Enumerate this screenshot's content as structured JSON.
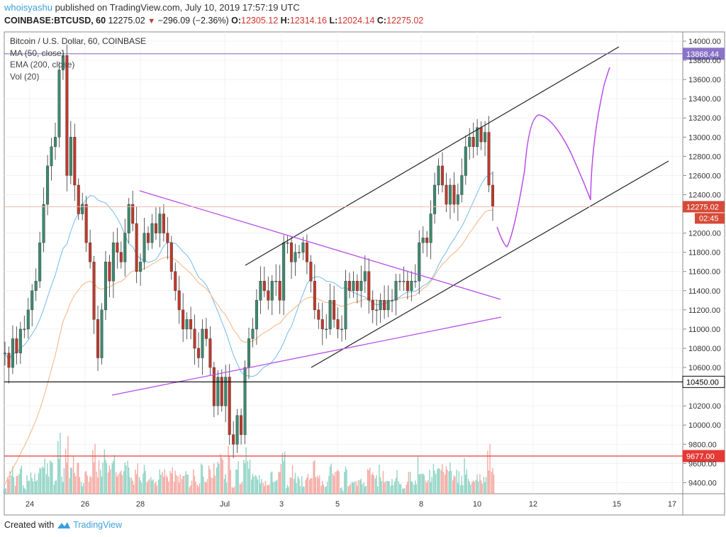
{
  "header": {
    "user": "whoisyashu",
    "published": "published on TradingView.com, July 10, 2019 17:57:19 UTC",
    "symbol": "COINBASE:BTCUSD, 60",
    "last": "12275.02",
    "change": "−296.09 (−2.36%)",
    "o_label": "O:",
    "o": "12305.12",
    "h_label": "H:",
    "h": "12314.16",
    "l_label": "L:",
    "l": "12024.14",
    "c_label": "C:",
    "c": "12275.02"
  },
  "legend": {
    "title": "Bitcoin / U.S. Dollar, 60, COINBASE",
    "ma": "MA (50, close)",
    "ema": "EMA (200, close)",
    "vol": "Vol (20)"
  },
  "footer": {
    "created": "Created with",
    "brand": "TradingView"
  },
  "colors": {
    "up": "#3c8a6e",
    "down": "#c0392b",
    "ma": "#7ec0ee",
    "ema": "#f7b98b",
    "resist": "#8a74c8",
    "support_red": "#e53935",
    "drawing": "#b84dea",
    "last": "#d64a38"
  },
  "chart_data": {
    "type": "candlestick",
    "ylim": [
      9300,
      14100
    ],
    "y_ticks": [
      "14000.00",
      "13800.00",
      "13600.00",
      "13400.00",
      "13200.00",
      "13000.00",
      "12800.00",
      "12600.00",
      "12400.00",
      "12000.00",
      "11800.00",
      "11600.00",
      "11400.00",
      "11200.00",
      "11000.00",
      "10800.00",
      "10600.00",
      "10200.00",
      "10000.00",
      "9800.00",
      "9600.00",
      "9400.00"
    ],
    "x_ticks": [
      "24",
      "26",
      "28",
      "Jul",
      "3",
      "5",
      "8",
      "10",
      "12",
      "15",
      "17"
    ],
    "closes": [
      10750,
      10600,
      10900,
      10750,
      11000,
      11000,
      11200,
      11400,
      11500,
      11900,
      12300,
      12700,
      12900,
      13000,
      13700,
      13850,
      12600,
      13000,
      12500,
      12200,
      12300,
      11900,
      11700,
      11100,
      10700,
      11200,
      11700,
      11500,
      11900,
      11800,
      11700,
      12000,
      12300,
      12100,
      11600,
      11700,
      12000,
      11900,
      12100,
      12000,
      12200,
      12000,
      11900,
      11600,
      11400,
      11200,
      11000,
      11100,
      11000,
      10800,
      10700,
      11000,
      10900,
      10600,
      10200,
      10500,
      10200,
      10500,
      9900,
      9800,
      10100,
      9900,
      10600,
      10900,
      11000,
      11300,
      11500,
      11400,
      11300,
      11500,
      11500,
      11300,
      11900,
      11900,
      11700,
      11800,
      11800,
      11900,
      11700,
      11500,
      11200,
      11100,
      11000,
      11000,
      11300,
      11100,
      11000,
      11000,
      11500,
      11400,
      11500,
      11400,
      11500,
      11600,
      11300,
      11200,
      11200,
      11300,
      11200,
      11300,
      11300,
      11500,
      11500,
      11500,
      11400,
      11500,
      11500,
      11900,
      11950,
      11900,
      12200,
      12500,
      12700,
      12500,
      12300,
      12500,
      12300,
      12400,
      12600,
      12900,
      13000,
      12900,
      13100,
      12950,
      13050,
      12500,
      12275.02
    ],
    "horizontal_levels": [
      {
        "label": "13868.44",
        "price": 13868.44,
        "color": "#8a74c8"
      },
      {
        "label": "10450.00",
        "price": 10450,
        "color": "#000000"
      },
      {
        "label": "9677.00",
        "price": 9677,
        "color": "#e53935"
      }
    ],
    "last_price_label": "12275.02",
    "countdown": "02:45"
  }
}
